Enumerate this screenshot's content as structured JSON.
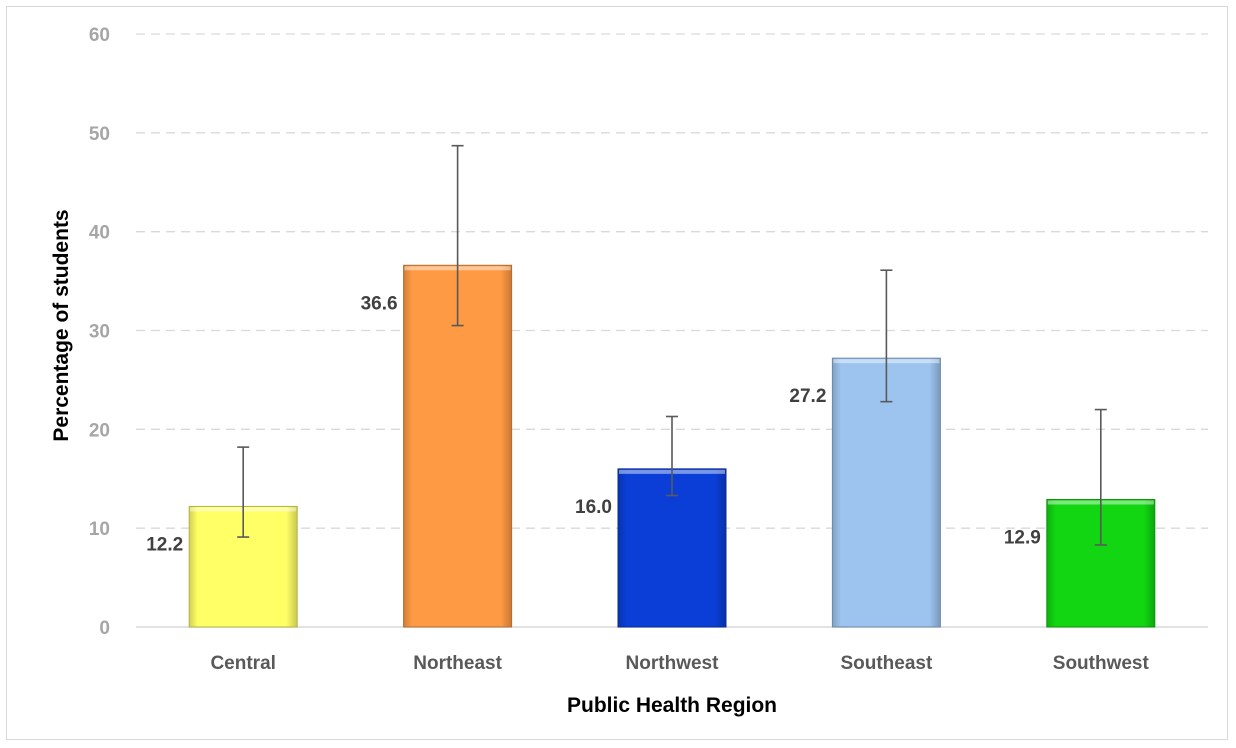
{
  "chart_data": {
    "type": "bar",
    "title": "",
    "xlabel": "Public Health Region",
    "ylabel": "Percentage of students",
    "ylim": [
      0,
      60
    ],
    "yticks": [
      0,
      10,
      20,
      30,
      40,
      50,
      60
    ],
    "grid": true,
    "categories": [
      "Central",
      "Northeast",
      "Northwest",
      "Southeast",
      "Southwest"
    ],
    "values": [
      12.2,
      36.6,
      16.0,
      27.2,
      12.9
    ],
    "value_labels": [
      "12.2",
      "36.6",
      "16.0",
      "27.2",
      "12.9"
    ],
    "error_low": [
      9.1,
      30.5,
      13.3,
      22.8,
      8.3
    ],
    "error_high": [
      18.2,
      48.7,
      21.3,
      36.1,
      22.0
    ],
    "colors": [
      "#ffff66",
      "#ff9a44",
      "#0a3ed6",
      "#9cc4ee",
      "#11d611"
    ]
  }
}
